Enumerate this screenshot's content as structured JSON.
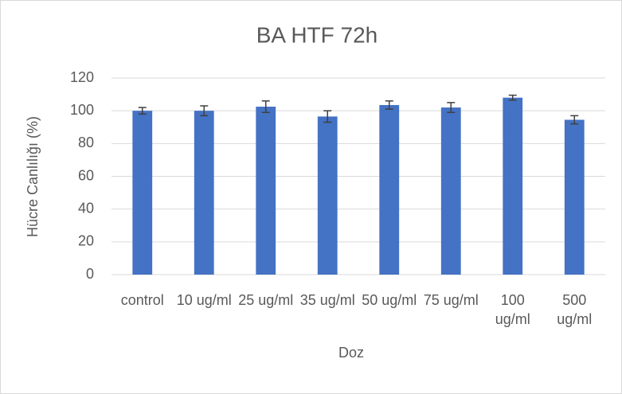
{
  "chart_data": {
    "type": "bar",
    "title": "BA HTF 72h",
    "x_label": "Doz",
    "y_label": "Hücre Canlılığı (%)",
    "categories": [
      "control",
      "10 ug/ml",
      "25 ug/ml",
      "35 ug/ml",
      "50 ug/ml",
      "75 ug/ml",
      "100 ug/ml",
      "500 ug/ml"
    ],
    "values": [
      100,
      100,
      102.5,
      96.5,
      103.5,
      102,
      108,
      94.5
    ],
    "errors": [
      2,
      3,
      3.5,
      3.5,
      2.5,
      3,
      1.5,
      2.5
    ],
    "color": "#4472c4",
    "ylim": [
      0,
      120
    ],
    "yticks": [
      0,
      20,
      40,
      60,
      80,
      100,
      120
    ],
    "grid": true
  }
}
